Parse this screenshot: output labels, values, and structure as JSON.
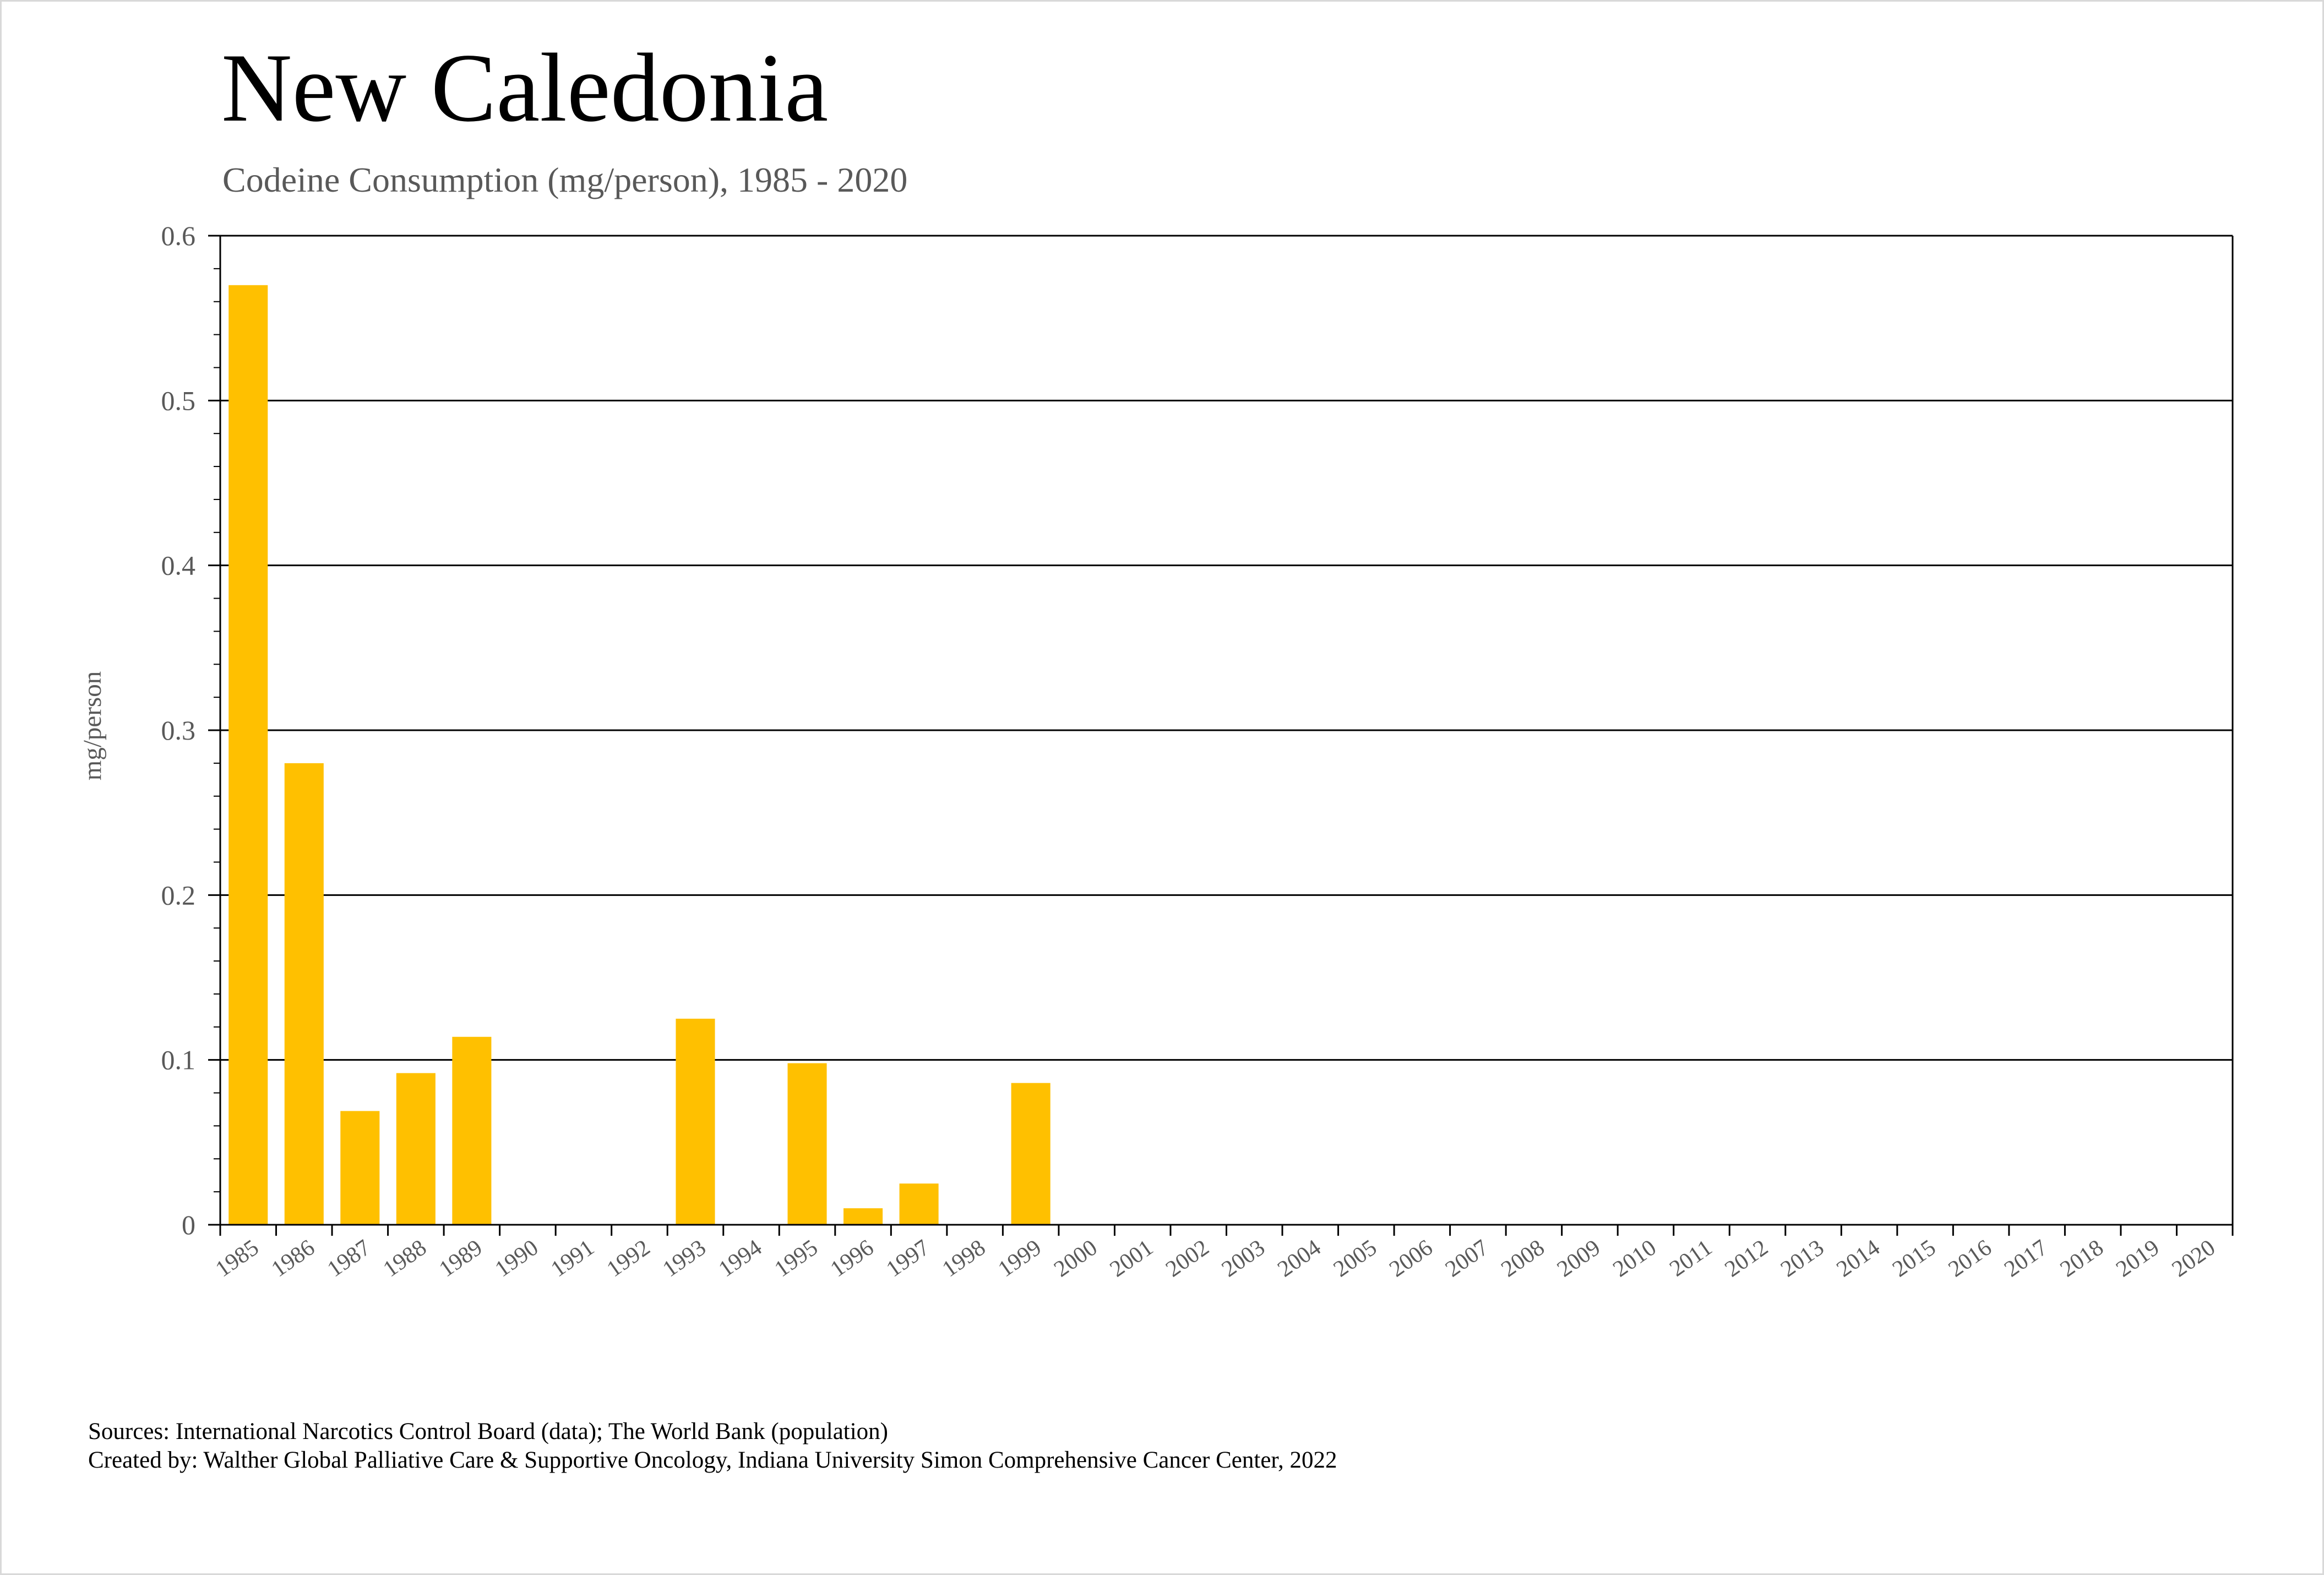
{
  "chart_data": {
    "type": "bar",
    "title": "New Caledonia",
    "subtitle": "Codeine Consumption (mg/person), 1985 - 2020",
    "ylabel": "mg/person",
    "xlabel": "",
    "ylim": [
      0,
      0.6
    ],
    "yticks": [
      0,
      0.1,
      0.2,
      0.3,
      0.4,
      0.5,
      0.6
    ],
    "ytick_labels": [
      "0",
      "0.1",
      "0.2",
      "0.3",
      "0.4",
      "0.5",
      "0.6"
    ],
    "grid": true,
    "bar_color": "#FFC000",
    "categories": [
      "1985",
      "1986",
      "1987",
      "1988",
      "1989",
      "1990",
      "1991",
      "1992",
      "1993",
      "1994",
      "1995",
      "1996",
      "1997",
      "1998",
      "1999",
      "2000",
      "2001",
      "2002",
      "2003",
      "2004",
      "2005",
      "2006",
      "2007",
      "2008",
      "2009",
      "2010",
      "2011",
      "2012",
      "2013",
      "2014",
      "2015",
      "2016",
      "2017",
      "2018",
      "2019",
      "2020"
    ],
    "values": [
      0.57,
      0.28,
      0.069,
      0.092,
      0.114,
      0,
      0,
      0,
      0.125,
      0,
      0.098,
      0.01,
      0.025,
      0,
      0.086,
      0,
      0,
      0,
      0,
      0,
      0,
      0,
      0,
      0,
      0,
      0,
      0,
      0,
      0,
      0,
      0,
      0,
      0,
      0,
      0,
      0
    ]
  },
  "footer": {
    "sources": "Sources: International Narcotics Control Board (data); The World Bank (population)",
    "created_by": "Created by: Walther Global Palliative Care & Supportive Oncology, Indiana University Simon Comprehensive Cancer Center, 2022"
  }
}
